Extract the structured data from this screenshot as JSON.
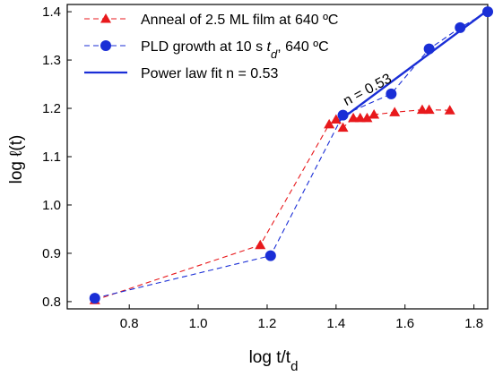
{
  "chart_data": {
    "type": "line",
    "xlabel_main": "log t/t",
    "xlabel_sub": "d",
    "ylabel_main": "log ℓ(t)",
    "xlim": [
      0.62,
      1.84
    ],
    "ylim": [
      0.785,
      1.415
    ],
    "x_ticks": [
      0.8,
      1.0,
      1.2,
      1.4,
      1.6,
      1.8
    ],
    "x_tick_labels": [
      "0.8",
      "1.0",
      "1.2",
      "1.4",
      "1.6",
      "1.8"
    ],
    "y_ticks": [
      0.8,
      0.9,
      1.0,
      1.1,
      1.2,
      1.3,
      1.4
    ],
    "y_tick_labels": [
      "0.8",
      "0.9",
      "1.0",
      "1.1",
      "1.2",
      "1.3",
      "1.4"
    ],
    "legend_position": "top-left",
    "grid": false,
    "series": [
      {
        "name": "Anneal of 2.5 ML film at 640 ºC",
        "legend_parts": [
          "Anneal of 2.5 ML film at 640 ºC"
        ],
        "marker": "triangle",
        "line": "dashed",
        "color": "#e8191c",
        "x": [
          0.7,
          1.18,
          1.38,
          1.4,
          1.42,
          1.45,
          1.47,
          1.49,
          1.51,
          1.57,
          1.65,
          1.67,
          1.73
        ],
        "y": [
          0.803,
          0.917,
          1.167,
          1.177,
          1.16,
          1.18,
          1.18,
          1.18,
          1.187,
          1.192,
          1.197,
          1.197,
          1.196
        ]
      },
      {
        "name": "PLD growth at 10 s td, 640 ºC",
        "legend_parts": [
          "PLD growth at 10 s ",
          "t",
          "d",
          ", 640 ºC"
        ],
        "marker": "circle",
        "line": "dashed",
        "color": "#1a2ed6",
        "x": [
          0.7,
          1.21,
          1.42,
          1.56,
          1.67,
          1.76,
          1.84
        ],
        "y": [
          0.807,
          0.895,
          1.186,
          1.23,
          1.323,
          1.367,
          1.4
        ]
      },
      {
        "name": "Power law fit n = 0.53",
        "legend_parts": [
          "Power law fit n = 0.53"
        ],
        "marker": "none",
        "line": "solid",
        "color": "#1a2ed6",
        "x": [
          1.41,
          1.84
        ],
        "y": [
          1.175,
          1.403
        ]
      }
    ],
    "annotations": [
      {
        "text": "n = 0.53",
        "x": 1.43,
        "y": 1.205,
        "rotate_deg": -28
      }
    ]
  }
}
